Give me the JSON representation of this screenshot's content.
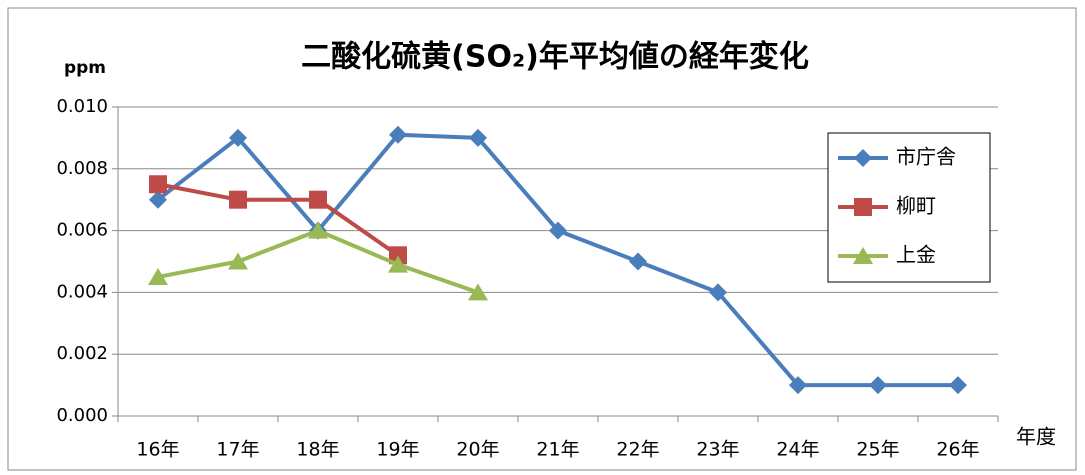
{
  "chart_data": {
    "type": "line",
    "title": "二酸化硫黄(SO₂)年平均値の経年変化",
    "y_label": "ppm",
    "x_label": "年度",
    "categories": [
      "16年",
      "17年",
      "18年",
      "19年",
      "20年",
      "21年",
      "22年",
      "23年",
      "24年",
      "25年",
      "26年"
    ],
    "series": [
      {
        "name": "市庁舎",
        "color": "#4a7ebb",
        "marker": "diamond",
        "values": [
          0.007,
          0.009,
          0.006,
          0.0091,
          0.009,
          0.006,
          0.005,
          0.004,
          0.001,
          0.001,
          0.001
        ]
      },
      {
        "name": "柳町",
        "color": "#be4b48",
        "marker": "square",
        "values": [
          0.0075,
          0.007,
          0.007,
          0.0052,
          null,
          null,
          null,
          null,
          null,
          null,
          null
        ]
      },
      {
        "name": "上金",
        "color": "#98b954",
        "marker": "triangle",
        "values": [
          0.0045,
          0.005,
          0.006,
          0.0049,
          0.004,
          null,
          null,
          null,
          null,
          null,
          null
        ]
      }
    ],
    "ylim": [
      0,
      0.01
    ],
    "yticks": [
      {
        "value": 0,
        "label": "0.000"
      },
      {
        "value": 0.002,
        "label": "0.002"
      },
      {
        "value": 0.004,
        "label": "0.004"
      },
      {
        "value": 0.006,
        "label": "0.006"
      },
      {
        "value": 0.008,
        "label": "0.008"
      },
      {
        "value": 0.01,
        "label": "0.010"
      }
    ],
    "grid": true,
    "legend": "right"
  }
}
